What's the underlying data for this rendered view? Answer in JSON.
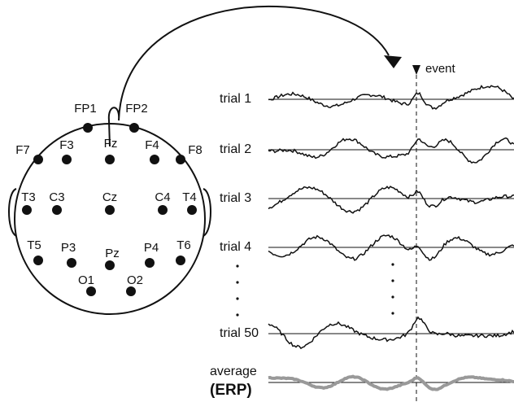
{
  "electrodes": [
    {
      "label": "FP1"
    },
    {
      "label": "FP2"
    },
    {
      "label": "F7"
    },
    {
      "label": "F3"
    },
    {
      "label": "Fz"
    },
    {
      "label": "F4"
    },
    {
      "label": "F8"
    },
    {
      "label": "T3"
    },
    {
      "label": "C3"
    },
    {
      "label": "Cz"
    },
    {
      "label": "C4"
    },
    {
      "label": "T4"
    },
    {
      "label": "T5"
    },
    {
      "label": "P3"
    },
    {
      "label": "Pz"
    },
    {
      "label": "P4"
    },
    {
      "label": "T6"
    },
    {
      "label": "O1"
    },
    {
      "label": "O2"
    }
  ],
  "event_label": "event",
  "trials": [
    {
      "label": "trial 1"
    },
    {
      "label": "trial 2"
    },
    {
      "label": "trial 3"
    },
    {
      "label": "trial 4"
    },
    {
      "label": "trial 50"
    }
  ],
  "average": {
    "label": "average",
    "sublabel": "(ERP)"
  }
}
